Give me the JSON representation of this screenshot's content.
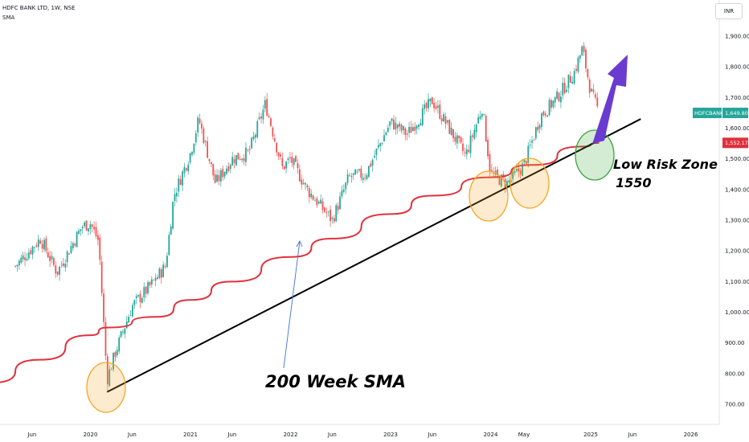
{
  "header": {
    "title": "HDFC BANK LTD, 1W, NSE",
    "indicator": "SMA",
    "currency": "INR"
  },
  "colors": {
    "up": "#26a69a",
    "down": "#ef5350",
    "sma": "#e0313c",
    "trendline": "#000000",
    "arrow": "#6a3bd0",
    "orange_zone": "#f5a623",
    "green_zone": "#3aa63a"
  },
  "chart_data": {
    "type": "candlestick",
    "ylim": [
      680,
      1960
    ],
    "yticks": [
      {
        "value": 1900,
        "label": "1,900.00"
      },
      {
        "value": 1800,
        "label": "1,800.00"
      },
      {
        "value": 1700,
        "label": "1,700.00"
      },
      {
        "value": 1600,
        "label": "1,600.00"
      },
      {
        "value": 1500,
        "label": "1,500.00"
      },
      {
        "value": 1400,
        "label": "1,400.00"
      },
      {
        "value": 1300,
        "label": "1,300.00"
      },
      {
        "value": 1200,
        "label": "1,200.00"
      },
      {
        "value": 1100,
        "label": "1,100.00"
      },
      {
        "value": 1000,
        "label": "1,000.00"
      },
      {
        "value": 900,
        "label": "900.00"
      },
      {
        "value": 800,
        "label": "800.00"
      },
      {
        "value": 700,
        "label": "700.00"
      }
    ],
    "xticks": [
      {
        "date": "2019-06",
        "label": "Jun"
      },
      {
        "date": "2020-01",
        "label": "2020"
      },
      {
        "date": "2020-06",
        "label": "Jun"
      },
      {
        "date": "2021-01",
        "label": "2021"
      },
      {
        "date": "2021-06",
        "label": "Jun"
      },
      {
        "date": "2022-01",
        "label": "2022"
      },
      {
        "date": "2022-06",
        "label": "Jun"
      },
      {
        "date": "2023-01",
        "label": "2023"
      },
      {
        "date": "2023-06",
        "label": "Jun"
      },
      {
        "date": "2024-01",
        "label": "2024"
      },
      {
        "date": "2024-05",
        "label": "May"
      },
      {
        "date": "2025-01",
        "label": "2025"
      },
      {
        "date": "2025-06",
        "label": "Jun"
      },
      {
        "date": "2026-01",
        "label": "2026"
      }
    ],
    "price_path": [
      [
        "2019-04",
        1150
      ],
      [
        "2019-07",
        1240
      ],
      [
        "2019-09",
        1130
      ],
      [
        "2019-12",
        1280
      ],
      [
        "2020-01",
        1290
      ],
      [
        "2020-02",
        1230
      ],
      [
        "2020-03",
        780
      ],
      [
        "2020-04",
        870
      ],
      [
        "2020-06",
        1020
      ],
      [
        "2020-08",
        1080
      ],
      [
        "2020-10",
        1150
      ],
      [
        "2020-11",
        1380
      ],
      [
        "2021-01",
        1520
      ],
      [
        "2021-02",
        1630
      ],
      [
        "2021-04",
        1420
      ],
      [
        "2021-06",
        1500
      ],
      [
        "2021-08",
        1520
      ],
      [
        "2021-10",
        1680
      ],
      [
        "2021-12",
        1470
      ],
      [
        "2022-01",
        1500
      ],
      [
        "2022-03",
        1400
      ],
      [
        "2022-06",
        1300
      ],
      [
        "2022-08",
        1440
      ],
      [
        "2022-10",
        1450
      ],
      [
        "2023-01",
        1620
      ],
      [
        "2023-03",
        1580
      ],
      [
        "2023-06",
        1690
      ],
      [
        "2023-08",
        1600
      ],
      [
        "2023-10",
        1510
      ],
      [
        "2023-12",
        1670
      ],
      [
        "2024-01",
        1450
      ],
      [
        "2024-03",
        1420
      ],
      [
        "2024-05",
        1480
      ],
      [
        "2024-07",
        1640
      ],
      [
        "2024-09",
        1700
      ],
      [
        "2024-11",
        1780
      ],
      [
        "2024-12",
        1860
      ],
      [
        "2025-01",
        1720
      ],
      [
        "2025-02",
        1650
      ]
    ],
    "sma_series": {
      "label": "200 Week SMA",
      "points": [
        [
          "2019-01",
          770
        ],
        [
          "2019-07",
          845
        ],
        [
          "2020-01",
          925
        ],
        [
          "2020-03",
          950
        ],
        [
          "2020-09",
          985
        ],
        [
          "2021-01",
          1040
        ],
        [
          "2021-06",
          1100
        ],
        [
          "2022-01",
          1180
        ],
        [
          "2022-06",
          1240
        ],
        [
          "2023-01",
          1320
        ],
        [
          "2023-06",
          1380
        ],
        [
          "2024-01",
          1440
        ],
        [
          "2024-06",
          1480
        ],
        [
          "2024-12",
          1540
        ],
        [
          "2025-02",
          1552
        ]
      ]
    },
    "trendline": [
      [
        "2020-03",
        740
      ],
      [
        "2025-07",
        1630
      ]
    ],
    "last_price": {
      "symbol": "HDFCBANK",
      "value": 1649.8,
      "label": "1,649.80"
    },
    "sma_value": {
      "value": 1552.17,
      "label": "1,552.17"
    },
    "zones": [
      {
        "type": "orange",
        "date": "2020-03",
        "value": 750
      },
      {
        "type": "orange",
        "date": "2024-01",
        "value": 1390
      },
      {
        "type": "orange",
        "date": "2024-05",
        "value": 1420
      },
      {
        "type": "green",
        "date": "2025-01",
        "value": 1525
      }
    ],
    "annotations": {
      "sma_label": "200 Week SMA",
      "zone_label_line1": "Low Risk Zone",
      "zone_label_line2": "1550"
    }
  }
}
